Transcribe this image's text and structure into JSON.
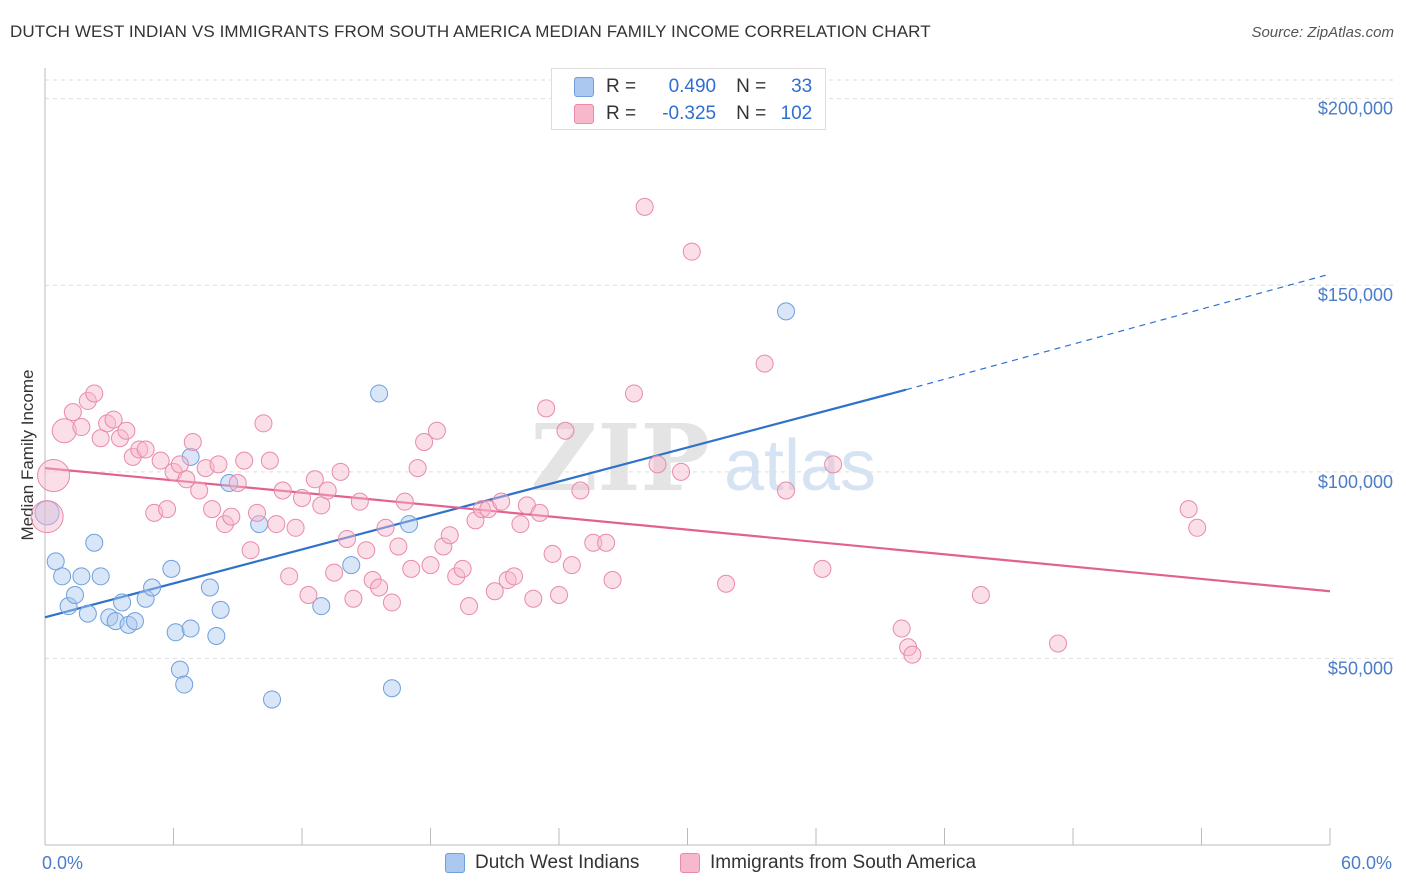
{
  "header": {
    "title": "DUTCH WEST INDIAN VS IMMIGRANTS FROM SOUTH AMERICA MEDIAN FAMILY INCOME CORRELATION CHART",
    "source": "Source: ZipAtlas.com"
  },
  "watermark": {
    "zip": "ZIP",
    "atlas": "atlas"
  },
  "stats": {
    "rows": [
      {
        "r_label": "R =",
        "r_value": "0.490",
        "n_label": "N =",
        "n_value": "33",
        "color": "#aac8f0"
      },
      {
        "r_label": "R =",
        "r_value": "-0.325",
        "n_label": "N =",
        "n_value": "102",
        "color": "#f7b8cc"
      }
    ]
  },
  "colors": {
    "blue_fill": "#aac8f0",
    "blue_stroke": "#6f9fdc",
    "blue_line": "#2f72cc",
    "pink_fill": "#f7b8cc",
    "pink_stroke": "#e98aa8",
    "pink_line": "#e2628e",
    "axis_label": "#4a7cc9",
    "grid": "#dddddd"
  },
  "chart_data": {
    "type": "scatter",
    "title": "DUTCH WEST INDIAN VS IMMIGRANTS FROM SOUTH AMERICA MEDIAN FAMILY INCOME CORRELATION CHART",
    "ylabel": "Median Family Income",
    "xlabel": "",
    "xlim": [
      0,
      60
    ],
    "ylim": [
      0,
      205000
    ],
    "x_tick_labels": [
      "0.0%",
      "60.0%"
    ],
    "y_ticks": [
      50000,
      100000,
      150000,
      200000
    ],
    "y_tick_labels": [
      "$50,000",
      "$100,000",
      "$150,000",
      "$200,000"
    ],
    "grid": true,
    "legend_position": "bottom",
    "series": [
      {
        "name": "Dutch West Indians",
        "color": "#aac8f0",
        "trend": {
          "x0": 0,
          "y0": 61000,
          "x1": 40.2,
          "y1": 122000,
          "dashed_to_x": 60,
          "dashed_to_y": 153000
        },
        "points": [
          [
            0.1,
            89000,
            2
          ],
          [
            0.5,
            76000,
            1
          ],
          [
            0.8,
            72000,
            1
          ],
          [
            1.1,
            64000,
            1
          ],
          [
            1.4,
            67000,
            1
          ],
          [
            1.7,
            72000,
            1
          ],
          [
            2.0,
            62000,
            1
          ],
          [
            2.3,
            81000,
            1
          ],
          [
            2.6,
            72000,
            1
          ],
          [
            3.0,
            61000,
            1
          ],
          [
            3.3,
            60000,
            1
          ],
          [
            3.6,
            65000,
            1
          ],
          [
            3.9,
            59000,
            1
          ],
          [
            4.2,
            60000,
            1
          ],
          [
            4.7,
            66000,
            1
          ],
          [
            5.0,
            69000,
            1
          ],
          [
            6.1,
            57000,
            1
          ],
          [
            5.9,
            74000,
            1
          ],
          [
            6.3,
            47000,
            1
          ],
          [
            6.5,
            43000,
            1
          ],
          [
            6.8,
            58000,
            1
          ],
          [
            6.8,
            104000,
            1
          ],
          [
            7.7,
            69000,
            1
          ],
          [
            8.0,
            56000,
            1
          ],
          [
            8.2,
            63000,
            1
          ],
          [
            8.6,
            97000,
            1
          ],
          [
            10.0,
            86000,
            1
          ],
          [
            10.6,
            39000,
            1
          ],
          [
            12.9,
            64000,
            1
          ],
          [
            14.3,
            75000,
            1
          ],
          [
            15.6,
            121000,
            1
          ],
          [
            16.2,
            42000,
            1
          ],
          [
            17.0,
            86000,
            1
          ],
          [
            34.6,
            143000,
            1
          ]
        ]
      },
      {
        "name": "Immigrants from South America",
        "color": "#f7b8cc",
        "trend": {
          "x0": 0,
          "y0": 101000,
          "x1": 60,
          "y1": 68000
        },
        "points": [
          [
            0.1,
            88000,
            3
          ],
          [
            0.4,
            99000,
            3
          ],
          [
            0.9,
            111000,
            2
          ],
          [
            1.3,
            116000,
            1
          ],
          [
            1.7,
            112000,
            1
          ],
          [
            2.0,
            119000,
            1
          ],
          [
            2.3,
            121000,
            1
          ],
          [
            2.6,
            109000,
            1
          ],
          [
            2.9,
            113000,
            1
          ],
          [
            3.2,
            114000,
            1
          ],
          [
            3.5,
            109000,
            1
          ],
          [
            3.8,
            111000,
            1
          ],
          [
            4.1,
            104000,
            1
          ],
          [
            4.4,
            106000,
            1
          ],
          [
            4.7,
            106000,
            1
          ],
          [
            5.1,
            89000,
            1
          ],
          [
            5.4,
            103000,
            1
          ],
          [
            5.7,
            90000,
            1
          ],
          [
            6.0,
            100000,
            1
          ],
          [
            6.3,
            102000,
            1
          ],
          [
            6.6,
            98000,
            1
          ],
          [
            6.9,
            108000,
            1
          ],
          [
            7.2,
            95000,
            1
          ],
          [
            7.5,
            101000,
            1
          ],
          [
            7.8,
            90000,
            1
          ],
          [
            8.1,
            102000,
            1
          ],
          [
            8.4,
            86000,
            1
          ],
          [
            8.7,
            88000,
            1
          ],
          [
            9.0,
            97000,
            1
          ],
          [
            9.3,
            103000,
            1
          ],
          [
            9.6,
            79000,
            1
          ],
          [
            9.9,
            89000,
            1
          ],
          [
            10.2,
            113000,
            1
          ],
          [
            10.5,
            103000,
            1
          ],
          [
            10.8,
            86000,
            1
          ],
          [
            11.1,
            95000,
            1
          ],
          [
            11.4,
            72000,
            1
          ],
          [
            11.7,
            85000,
            1
          ],
          [
            12.0,
            93000,
            1
          ],
          [
            12.3,
            67000,
            1
          ],
          [
            12.6,
            98000,
            1
          ],
          [
            12.9,
            91000,
            1
          ],
          [
            13.2,
            95000,
            1
          ],
          [
            13.5,
            73000,
            1
          ],
          [
            13.8,
            100000,
            1
          ],
          [
            14.1,
            82000,
            1
          ],
          [
            14.4,
            66000,
            1
          ],
          [
            14.7,
            92000,
            1
          ],
          [
            15.0,
            79000,
            1
          ],
          [
            15.3,
            71000,
            1
          ],
          [
            15.6,
            69000,
            1
          ],
          [
            15.9,
            85000,
            1
          ],
          [
            16.2,
            65000,
            1
          ],
          [
            16.5,
            80000,
            1
          ],
          [
            16.8,
            92000,
            1
          ],
          [
            17.1,
            74000,
            1
          ],
          [
            17.4,
            101000,
            1
          ],
          [
            17.7,
            108000,
            1
          ],
          [
            18.0,
            75000,
            1
          ],
          [
            18.3,
            111000,
            1
          ],
          [
            18.6,
            80000,
            1
          ],
          [
            18.9,
            83000,
            1
          ],
          [
            19.2,
            72000,
            1
          ],
          [
            19.5,
            74000,
            1
          ],
          [
            19.8,
            64000,
            1
          ],
          [
            20.1,
            87000,
            1
          ],
          [
            20.4,
            90000,
            1
          ],
          [
            20.7,
            90000,
            1
          ],
          [
            21.0,
            68000,
            1
          ],
          [
            21.3,
            92000,
            1
          ],
          [
            21.6,
            71000,
            1
          ],
          [
            21.9,
            72000,
            1
          ],
          [
            22.2,
            86000,
            1
          ],
          [
            22.5,
            91000,
            1
          ],
          [
            22.8,
            66000,
            1
          ],
          [
            23.1,
            89000,
            1
          ],
          [
            23.4,
            117000,
            1
          ],
          [
            23.7,
            78000,
            1
          ],
          [
            24.0,
            67000,
            1
          ],
          [
            24.3,
            111000,
            1
          ],
          [
            24.6,
            75000,
            1
          ],
          [
            25.0,
            95000,
            1
          ],
          [
            25.6,
            81000,
            1
          ],
          [
            26.2,
            81000,
            1
          ],
          [
            26.5,
            71000,
            1
          ],
          [
            27.5,
            121000,
            1
          ],
          [
            28.0,
            171000,
            1
          ],
          [
            28.6,
            102000,
            1
          ],
          [
            29.7,
            100000,
            1
          ],
          [
            30.2,
            159000,
            1
          ],
          [
            31.8,
            70000,
            1
          ],
          [
            33.6,
            129000,
            1
          ],
          [
            34.6,
            95000,
            1
          ],
          [
            36.3,
            74000,
            1
          ],
          [
            36.8,
            102000,
            1
          ],
          [
            40.0,
            58000,
            1
          ],
          [
            40.3,
            53000,
            1
          ],
          [
            40.5,
            51000,
            1
          ],
          [
            43.7,
            67000,
            1
          ],
          [
            47.3,
            54000,
            1
          ],
          [
            53.4,
            90000,
            1
          ],
          [
            53.8,
            85000,
            1
          ]
        ]
      }
    ]
  }
}
